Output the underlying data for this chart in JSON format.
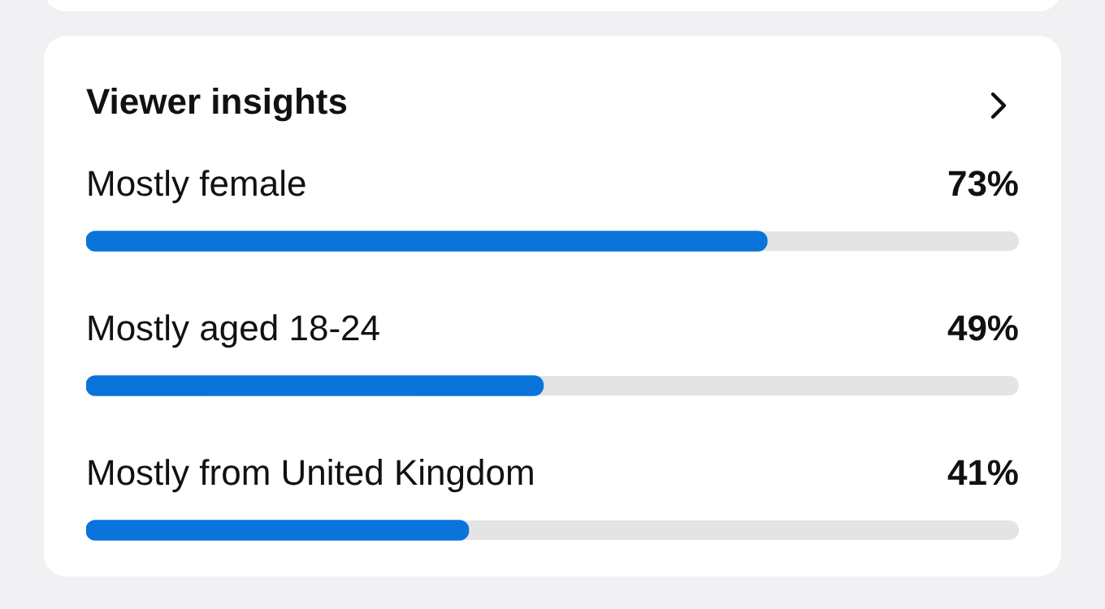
{
  "chart_data": {
    "type": "bar",
    "orientation": "horizontal",
    "title": "Viewer insights",
    "categories": [
      "Mostly female",
      "Mostly aged 18-24",
      "Mostly from United Kingdom"
    ],
    "values": [
      73,
      49,
      41
    ],
    "value_labels": [
      "73%",
      "49%",
      "41%"
    ],
    "color": "#0a74da",
    "xlim": [
      0,
      100
    ],
    "grid": false,
    "legend": false,
    "tick_labels": false
  }
}
